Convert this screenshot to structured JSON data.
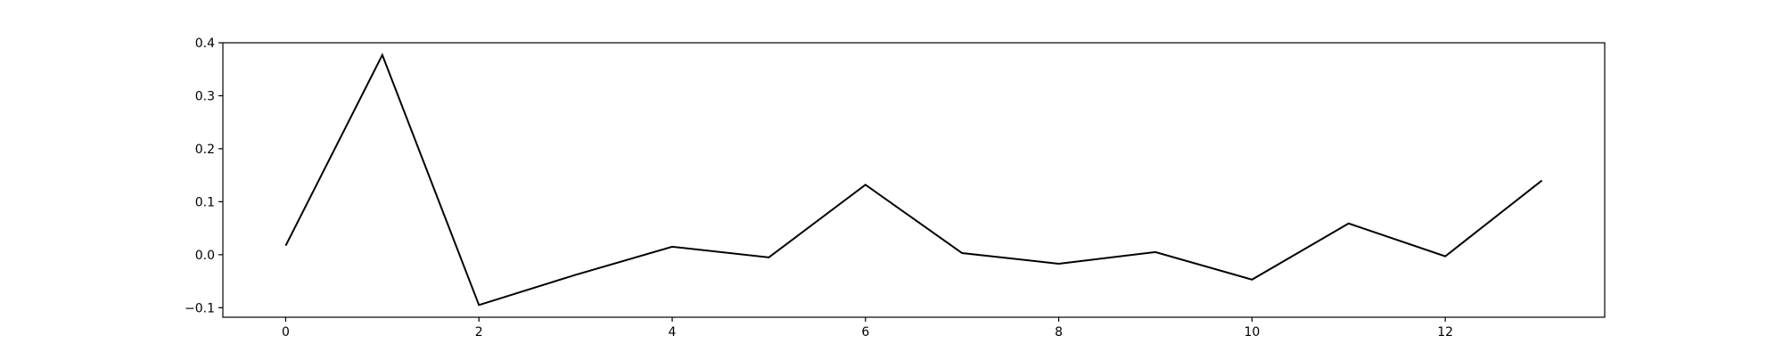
{
  "chart_data": {
    "type": "line",
    "title": "",
    "xlabel": "",
    "ylabel": "",
    "xlim": [
      -0.65,
      13.65
    ],
    "ylim": [
      -0.118,
      0.4
    ],
    "xticks": [
      0,
      2,
      4,
      6,
      8,
      10,
      12
    ],
    "yticks": [
      -0.1,
      0.0,
      0.1,
      0.2,
      0.3,
      0.4
    ],
    "xtick_labels": [
      "0",
      "2",
      "4",
      "6",
      "8",
      "10",
      "12"
    ],
    "ytick_labels": [
      "−0.1",
      "0.0",
      "0.1",
      "0.2",
      "0.3",
      "0.4"
    ],
    "grid": false,
    "legend": false,
    "series": [
      {
        "color": "#000000",
        "x": [
          0,
          1,
          2,
          3,
          4,
          5,
          6,
          7,
          8,
          9,
          10,
          11,
          12,
          13
        ],
        "y": [
          0.017,
          0.377,
          -0.095,
          -0.038,
          0.015,
          -0.005,
          0.132,
          0.003,
          -0.017,
          0.005,
          -0.047,
          0.059,
          -0.003,
          0.14
        ]
      }
    ]
  }
}
